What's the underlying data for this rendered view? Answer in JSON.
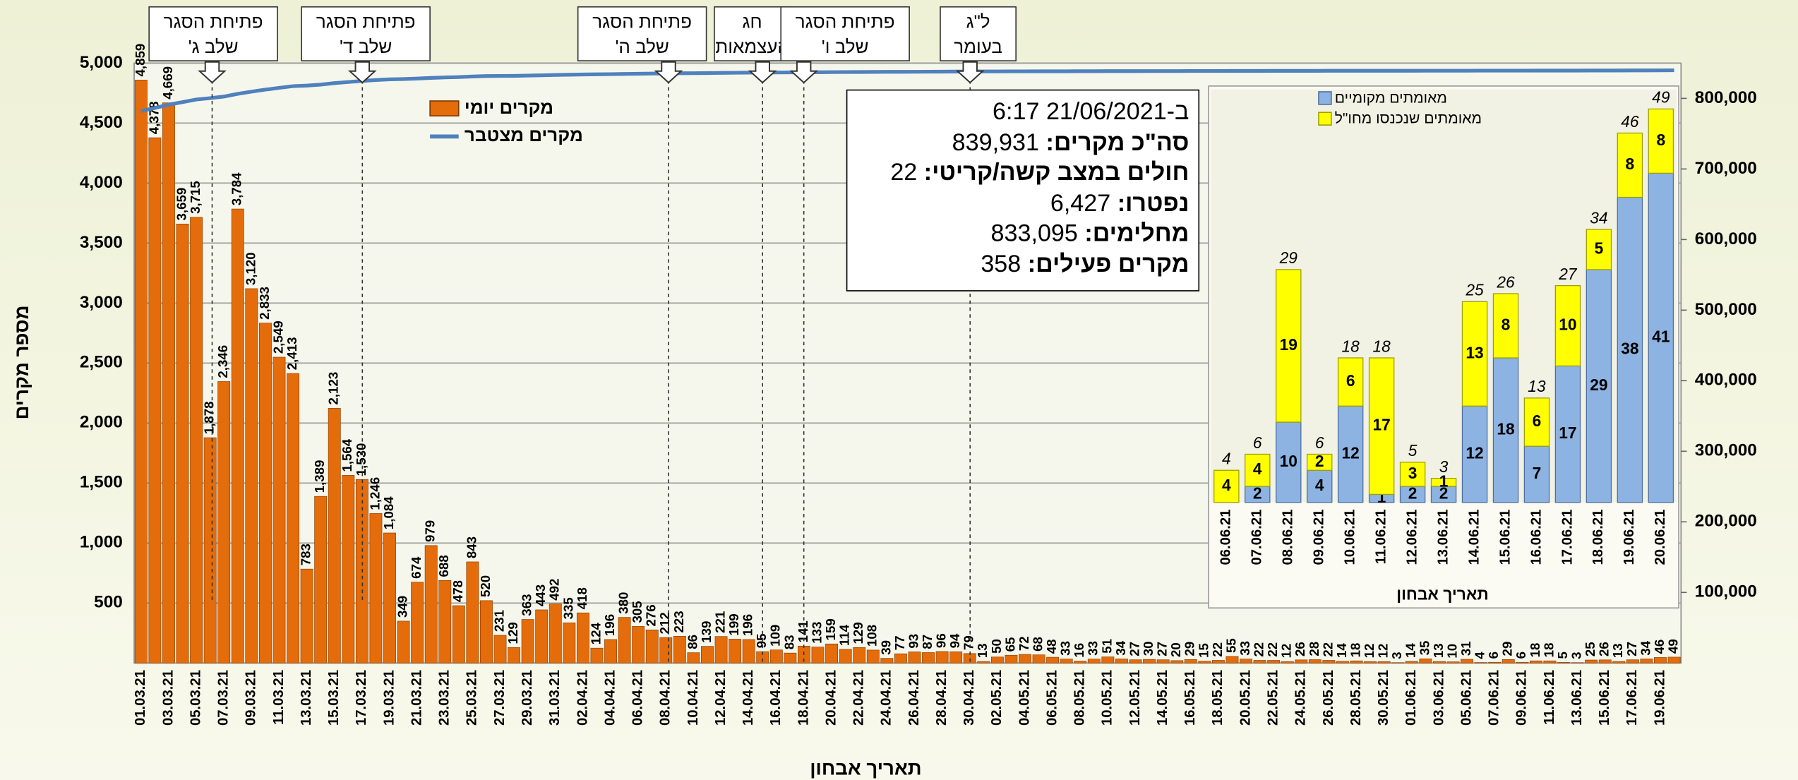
{
  "chart_data": [
    {
      "type": "bar",
      "x_label": "תאריך אבחון",
      "y_label": "מספר מקרים",
      "categories": [
        "01.03.21",
        null,
        "03.03.21",
        null,
        "05.03.21",
        null,
        "07.03.21",
        null,
        "09.03.21",
        null,
        "11.03.21",
        null,
        "13.03.21",
        null,
        "15.03.21",
        null,
        "17.03.21",
        null,
        "19.03.21",
        null,
        "21.03.21",
        null,
        "23.03.21",
        null,
        "25.03.21",
        null,
        "27.03.21",
        null,
        "29.03.21",
        null,
        "31.03.21",
        null,
        "02.04.21",
        null,
        "04.04.21",
        null,
        "06.04.21",
        null,
        "08.04.21",
        null,
        "10.04.21",
        null,
        "12.04.21",
        null,
        "14.04.21",
        null,
        "16.04.21",
        null,
        "18.04.21",
        null,
        "20.04.21",
        null,
        "22.04.21",
        null,
        "24.04.21",
        null,
        "26.04.21",
        null,
        "28.04.21",
        null,
        "30.04.21",
        null,
        "02.05.21",
        null,
        "04.05.21",
        null,
        "06.05.21",
        null,
        "08.05.21",
        null,
        "10.05.21",
        null,
        "12.05.21",
        null,
        "14.05.21",
        null,
        "16.05.21",
        null,
        "18.05.21",
        null,
        "20.05.21",
        null,
        "22.05.21",
        null,
        "24.05.21",
        null,
        "26.05.21",
        null,
        "28.05.21",
        null,
        "30.05.21",
        null,
        "01.06.21",
        null,
        "03.06.21",
        null,
        "05.06.21",
        null,
        "07.06.21",
        null,
        "09.06.21",
        null,
        "11.06.21",
        null,
        "13.06.21",
        null,
        "15.06.21",
        null,
        "17.06.21",
        null,
        "19.06.21",
        null
      ],
      "series": [
        {
          "name": "מקרים יומי",
          "color": "#e46c0a",
          "values": [
            4859,
            4378,
            4669,
            3659,
            3715,
            1878,
            2346,
            3784,
            3120,
            2833,
            2549,
            2413,
            783,
            1389,
            2123,
            1564,
            1530,
            1246,
            1084,
            349,
            674,
            979,
            688,
            478,
            843,
            520,
            231,
            129,
            363,
            443,
            492,
            335,
            418,
            124,
            196,
            380,
            305,
            276,
            212,
            223,
            86,
            139,
            221,
            199,
            196,
            95,
            109,
            83,
            141,
            133,
            159,
            114,
            129,
            108,
            39,
            77,
            93,
            87,
            96,
            94,
            79,
            13,
            50,
            65,
            72,
            68,
            48,
            33,
            16,
            33,
            51,
            34,
            27,
            30,
            27,
            20,
            29,
            15,
            22,
            55,
            33,
            22,
            22,
            12,
            26,
            28,
            22,
            14,
            18,
            12,
            12,
            3,
            14,
            35,
            13,
            10,
            31,
            4,
            6,
            29,
            6,
            18,
            18,
            5,
            3,
            25,
            26,
            13,
            27,
            34,
            46,
            49
          ],
          "value_labels": [
            "4,859",
            "4,378",
            "4,669",
            "3,659",
            "3,715",
            "1,878",
            "2,346",
            "3,784",
            "3,120",
            "2,833",
            "2,549",
            "2,413",
            "783",
            "1,389",
            "2,123",
            "1,564",
            "1,530",
            "1,246",
            "1,084",
            "349",
            "674",
            "979",
            "688",
            "478",
            "843",
            "520",
            "231",
            "129",
            "363",
            "443",
            "492",
            "335",
            "418",
            "124",
            "196",
            "380",
            "305",
            "276",
            "212",
            "223",
            "86",
            "139",
            "221",
            "199",
            "196",
            "95",
            "109",
            "83",
            "141",
            "133",
            "159",
            "114",
            "129",
            "108",
            "39",
            "77",
            "93",
            "87",
            "96",
            "94",
            "79",
            "13",
            "50",
            "65",
            "72",
            "68",
            "48",
            "33",
            "16",
            "33",
            "51",
            "34",
            "27",
            "30",
            "27",
            "20",
            "29",
            "15",
            "22",
            "55",
            "33",
            "22",
            "22",
            "12",
            "26",
            "28",
            "22",
            "14",
            "18",
            "12",
            "12",
            "3",
            "14",
            "35",
            "13",
            "10",
            "31",
            "4",
            "6",
            "29",
            "6",
            "18",
            "18",
            "5",
            "3",
            "25",
            "26",
            "13",
            "27",
            "34",
            "46",
            "49"
          ]
        },
        {
          "name": "מקרים מצטבר",
          "color": "#4f81bd",
          "type": "line",
          "axis": "y2",
          "values": [
            782000,
            786400,
            791100,
            794700,
            798400,
            800300,
            802600,
            806400,
            809500,
            812400,
            814900,
            817300,
            818100,
            819500,
            821600,
            823200,
            824700,
            826000,
            827000,
            827400,
            828100,
            829000,
            829700,
            830200,
            831000,
            831600,
            831800,
            831900,
            832300,
            832700,
            833200,
            833500,
            833900,
            834100,
            834300,
            834600,
            834900,
            835200,
            835400,
            835600,
            835700,
            835900,
            836100,
            836300,
            836500,
            836600,
            836700,
            836800,
            836900,
            837000,
            837200,
            837300,
            837400,
            837500,
            837600,
            837600,
            837700,
            837800,
            837900,
            838000,
            838100,
            838200,
            838200,
            838300,
            838300,
            838400,
            838400,
            838400,
            838500,
            838500,
            838600,
            838600,
            838600,
            838700,
            838700,
            838700,
            838800,
            838800,
            838800,
            838900,
            838900,
            838900,
            839000,
            839000,
            839000,
            839000,
            839100,
            839100,
            839100,
            839100,
            839100,
            839100,
            839100,
            839200,
            839200,
            839200,
            839200,
            839300,
            839300,
            839300,
            839300,
            839400,
            839400,
            839400,
            839400,
            839500,
            839500,
            839500,
            839600,
            839600,
            839700,
            839800
          ]
        }
      ],
      "ylim": [
        0,
        5000
      ],
      "yticks": [
        500,
        {
          "value": 1000,
          "label": "1,000"
        },
        {
          "value": 1500,
          "label": "1,500"
        },
        {
          "value": 2000,
          "label": "2,000"
        },
        {
          "value": 2500,
          "label": "2,500"
        },
        {
          "value": 3000,
          "label": "3,000"
        },
        {
          "value": 3500,
          "label": "3,500"
        },
        {
          "value": 4000,
          "label": "4,000"
        },
        {
          "value": 4500,
          "label": "4,500"
        },
        {
          "value": 5000,
          "label": "5,000"
        }
      ],
      "y2lim": [
        0,
        850000
      ],
      "y2ticks": [
        {
          "value": 100000,
          "label": "100,000"
        },
        {
          "value": 200000,
          "label": "200,000"
        },
        {
          "value": 300000,
          "label": "300,000"
        },
        {
          "value": 400000,
          "label": "400,000"
        },
        {
          "value": 500000,
          "label": "500,000"
        },
        {
          "value": 600000,
          "label": "600,000"
        },
        {
          "value": 700000,
          "label": "700,000"
        },
        {
          "value": 800000,
          "label": "800,000"
        }
      ],
      "grid": true,
      "annotations": [
        {
          "lines": [
            "פתיחת הסגר",
            "שלב ג'"
          ]
        },
        {
          "lines": [
            "פתיחת הסגר",
            "שלב ד'"
          ]
        },
        {
          "lines": [
            "פתיחת הסגר",
            "שלב ה'"
          ]
        },
        {
          "lines": [
            "חג",
            "העצמאות"
          ]
        },
        {
          "lines": [
            "פתיחת הסגר",
            "שלב ו'"
          ]
        },
        {
          "lines": [
            "ל\"ג",
            "בעומר"
          ]
        }
      ],
      "info_box": [
        {
          "text": "ב-21/06/2021 6:17"
        },
        {
          "label": "סה\"כ מקרים:",
          "value": "839,931"
        },
        {
          "label": "חולים במצב קשה/קריטי:",
          "value": "22"
        },
        {
          "label": "נפטרו:",
          "value": "6,427"
        },
        {
          "label": "מחלימים:",
          "value": "833,095"
        },
        {
          "label": "מקרים פעילים:",
          "value": "358"
        }
      ]
    },
    {
      "type": "stacked_bar",
      "x_label": "תאריך אבחון",
      "categories": [
        "06.06.21",
        "07.06.21",
        "08.06.21",
        "09.06.21",
        "10.06.21",
        "11.06.21",
        "12.06.21",
        "13.06.21",
        "14.06.21",
        "15.06.21",
        "16.06.21",
        "17.06.21",
        "18.06.21",
        "19.06.21",
        "20.06.21"
      ],
      "series": [
        {
          "name": "מאומתים מקומיים",
          "color": "#8db3e2",
          "values": [
            0,
            2,
            10,
            4,
            12,
            1,
            2,
            2,
            12,
            18,
            7,
            17,
            29,
            38,
            41
          ]
        },
        {
          "name": "מאומתים שנכנסו מחו\"ל",
          "color": "#ffff00",
          "values": [
            4,
            4,
            19,
            2,
            6,
            17,
            3,
            1,
            13,
            8,
            6,
            10,
            5,
            8,
            8
          ]
        }
      ],
      "totals": [
        4,
        6,
        29,
        6,
        18,
        18,
        5,
        3,
        25,
        26,
        13,
        27,
        34,
        46,
        49
      ]
    }
  ]
}
